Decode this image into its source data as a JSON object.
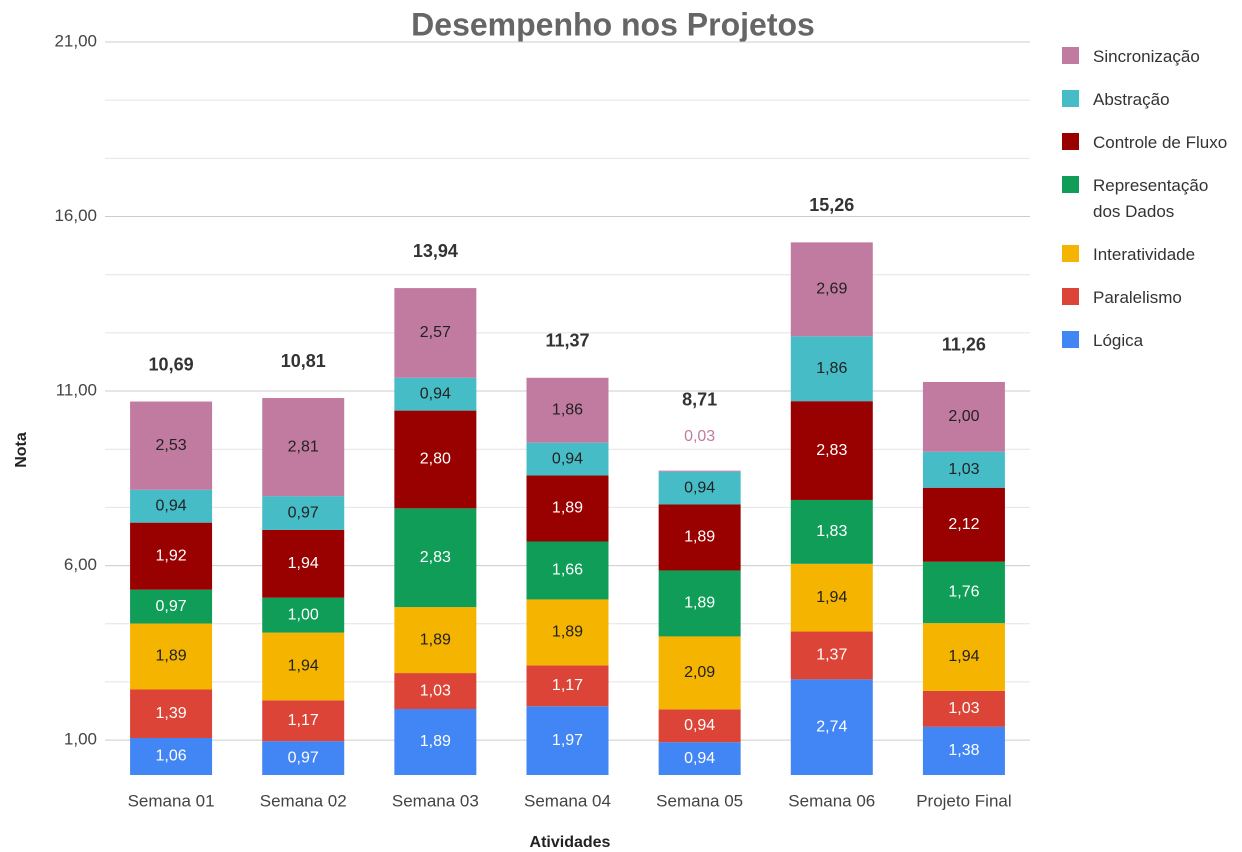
{
  "chart_data": {
    "type": "stacked_bar",
    "title": "Desempenho nos Projetos",
    "x_label": "Atividades",
    "y_label": "Nota",
    "categories": [
      "Semana 01",
      "Semana 02",
      "Semana 03",
      "Semana 04",
      "Semana 05",
      "Semana 06",
      "Projeto Final"
    ],
    "series": [
      {
        "name": "Lógica",
        "color": "#4285f4",
        "values": [
          1.06,
          0.97,
          1.89,
          1.97,
          0.94,
          2.74,
          1.38
        ],
        "value_labels": [
          "1,06",
          "0,97",
          "1,89",
          "1,97",
          "0,94",
          "2,74",
          "1,38"
        ]
      },
      {
        "name": "Paralelismo",
        "color": "#db4437",
        "values": [
          1.39,
          1.17,
          1.03,
          1.17,
          0.94,
          1.37,
          1.03
        ],
        "value_labels": [
          "1,39",
          "1,17",
          "1,03",
          "1,17",
          "0,94",
          "1,37",
          "1,03"
        ]
      },
      {
        "name": "Interatividade",
        "color": "#f4b400",
        "values": [
          1.89,
          1.94,
          1.89,
          1.89,
          2.09,
          1.94,
          1.94
        ],
        "value_labels": [
          "1,89",
          "1,94",
          "1,89",
          "1,89",
          "2,09",
          "1,94",
          "1,94"
        ]
      },
      {
        "name": "Representação dos Dados",
        "color": "#0f9d58",
        "values": [
          0.97,
          1.0,
          2.83,
          1.66,
          1.89,
          1.83,
          1.76
        ],
        "value_labels": [
          "0,97",
          "1,00",
          "2,83",
          "1,66",
          "1,89",
          "1,83",
          "1,76"
        ]
      },
      {
        "name": "Controle de Fluxo",
        "color": "#990000",
        "values": [
          1.92,
          1.94,
          2.8,
          1.89,
          1.89,
          2.83,
          2.12
        ],
        "value_labels": [
          "1,92",
          "1,94",
          "2,80",
          "1,89",
          "1,89",
          "2,83",
          "2,12"
        ]
      },
      {
        "name": "Abstração",
        "color": "#46bdc6",
        "values": [
          0.94,
          0.97,
          0.94,
          0.94,
          0.94,
          1.86,
          1.03
        ],
        "value_labels": [
          "0,94",
          "0,97",
          "0,94",
          "0,94",
          "0,94",
          "1,86",
          "1,03"
        ]
      },
      {
        "name": "Sincronização",
        "color": "#c27ba0",
        "values": [
          2.53,
          2.81,
          2.57,
          1.86,
          0.03,
          2.69,
          2.0
        ],
        "value_labels": [
          "2,53",
          "2,81",
          "2,57",
          "1,86",
          "0,03",
          "2,69",
          "2,00"
        ]
      }
    ],
    "totals": [
      10.69,
      10.81,
      13.94,
      11.37,
      8.71,
      15.26,
      11.26
    ],
    "total_labels": [
      "10,69",
      "10,81",
      "13,94",
      "11,37",
      "8,71",
      "15,26",
      "11,26"
    ],
    "ylim": [
      0,
      21
    ],
    "yticks": [
      {
        "value": 1,
        "label": "1,00"
      },
      {
        "value": 6,
        "label": "6,00"
      },
      {
        "value": 11,
        "label": "11,00"
      },
      {
        "value": 16,
        "label": "16,00"
      },
      {
        "value": 21,
        "label": "21,00"
      }
    ],
    "grid": true,
    "minor_gridlines": 2,
    "legend": "right"
  }
}
